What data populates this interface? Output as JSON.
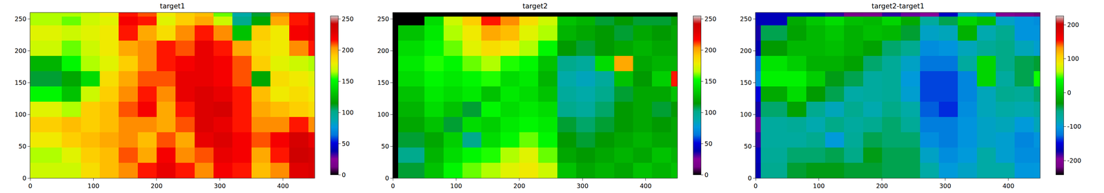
{
  "chart_data": [
    {
      "type": "heatmap",
      "title": "target1",
      "x": [
        0,
        8,
        50,
        80,
        110,
        140,
        170,
        200,
        230,
        260,
        290,
        320,
        350,
        380,
        410,
        440,
        450
      ],
      "y": [
        0,
        24,
        48,
        72,
        96,
        120,
        144,
        168,
        192,
        216,
        240,
        254,
        260
      ],
      "z": [
        [
          170,
          170,
          170,
          185,
          195,
          205,
          215,
          225,
          215,
          205,
          220,
          215,
          195,
          205,
          228,
          232
        ],
        [
          165,
          165,
          175,
          190,
          195,
          210,
          200,
          220,
          205,
          210,
          225,
          220,
          200,
          215,
          240,
          235
        ],
        [
          180,
          180,
          190,
          195,
          200,
          205,
          195,
          210,
          200,
          225,
          230,
          220,
          210,
          220,
          235,
          225
        ],
        [
          190,
          190,
          195,
          190,
          195,
          205,
          205,
          200,
          210,
          230,
          225,
          215,
          205,
          205,
          215,
          205
        ],
        [
          175,
          175,
          165,
          190,
          195,
          210,
          220,
          200,
          215,
          230,
          235,
          215,
          200,
          195,
          190,
          185
        ],
        [
          150,
          150,
          130,
          170,
          190,
          205,
          215,
          205,
          225,
          230,
          225,
          215,
          195,
          180,
          185,
          180
        ],
        [
          110,
          110,
          120,
          140,
          185,
          200,
          210,
          210,
          225,
          225,
          220,
          210,
          120,
          185,
          180,
          175
        ],
        [
          125,
          125,
          150,
          165,
          175,
          190,
          205,
          215,
          220,
          225,
          220,
          210,
          190,
          175,
          170,
          165
        ],
        [
          170,
          170,
          160,
          170,
          180,
          200,
          205,
          215,
          210,
          225,
          215,
          200,
          185,
          180,
          205,
          215
        ],
        [
          175,
          175,
          170,
          175,
          180,
          215,
          200,
          185,
          205,
          215,
          205,
          130,
          190,
          180,
          220,
          225
        ],
        [
          165,
          165,
          160,
          170,
          175,
          220,
          215,
          175,
          190,
          200,
          170,
          100,
          120,
          200,
          215,
          225
        ],
        [
          165,
          165,
          165,
          170,
          180,
          215,
          210,
          180,
          190,
          195,
          160,
          90,
          110,
          205,
          215,
          220
        ]
      ],
      "xlim": [
        0,
        450
      ],
      "ylim": [
        0,
        260
      ],
      "xticks": [
        0,
        100,
        200,
        300,
        400
      ],
      "yticks": [
        0,
        50,
        100,
        150,
        200,
        250
      ],
      "colorbar": {
        "range": [
          0,
          255
        ],
        "ticks": [
          0,
          50,
          100,
          150,
          200,
          250
        ]
      }
    },
    {
      "type": "heatmap",
      "title": "target2",
      "x": [
        0,
        8,
        50,
        80,
        110,
        140,
        170,
        200,
        230,
        260,
        290,
        320,
        350,
        380,
        410,
        440,
        450
      ],
      "y": [
        0,
        24,
        48,
        72,
        96,
        120,
        144,
        168,
        192,
        216,
        240,
        254,
        260
      ],
      "z": [
        [
          0,
          110,
          130,
          150,
          160,
          165,
          175,
          180,
          170,
          130,
          120,
          125,
          120,
          130,
          125,
          130
        ],
        [
          0,
          100,
          125,
          140,
          150,
          155,
          165,
          175,
          160,
          120,
          115,
          120,
          125,
          120,
          130,
          125
        ],
        [
          0,
          110,
          120,
          135,
          100,
          140,
          150,
          160,
          150,
          115,
          110,
          115,
          120,
          125,
          120,
          120
        ],
        [
          0,
          120,
          130,
          110,
          140,
          135,
          145,
          150,
          145,
          110,
          105,
          110,
          115,
          120,
          115,
          120
        ],
        [
          0,
          125,
          140,
          130,
          110,
          150,
          140,
          145,
          140,
          100,
          95,
          105,
          115,
          120,
          110,
          115
        ],
        [
          0,
          130,
          145,
          140,
          145,
          130,
          145,
          140,
          130,
          95,
          90,
          100,
          110,
          120,
          120,
          130
        ],
        [
          0,
          140,
          150,
          145,
          150,
          155,
          140,
          145,
          125,
          90,
          85,
          95,
          130,
          115,
          135,
          215
        ],
        [
          0,
          145,
          155,
          150,
          160,
          165,
          155,
          150,
          130,
          100,
          95,
          140,
          200,
          120,
          125,
          125
        ],
        [
          0,
          140,
          150,
          160,
          175,
          185,
          180,
          165,
          150,
          115,
          110,
          115,
          120,
          125,
          120,
          120
        ],
        [
          0,
          130,
          145,
          165,
          180,
          200,
          195,
          175,
          165,
          125,
          120,
          115,
          110,
          120,
          115,
          120
        ],
        [
          0,
          0,
          140,
          170,
          190,
          215,
          205,
          185,
          170,
          130,
          125,
          110,
          115,
          110,
          110,
          115
        ],
        [
          0,
          0,
          0,
          0,
          0,
          0,
          0,
          0,
          0,
          0,
          0,
          0,
          0,
          0,
          0,
          0
        ]
      ],
      "xlim": [
        0,
        450
      ],
      "ylim": [
        0,
        260
      ],
      "xticks": [
        0,
        100,
        200,
        300,
        400
      ],
      "yticks": [
        0,
        50,
        100,
        150,
        200,
        250
      ],
      "colorbar": {
        "range": [
          0,
          255
        ],
        "ticks": [
          0,
          50,
          100,
          150,
          200,
          250
        ]
      }
    },
    {
      "type": "heatmap",
      "title": "target2-target1",
      "x": [
        0,
        8,
        50,
        80,
        110,
        140,
        170,
        200,
        230,
        260,
        290,
        320,
        350,
        380,
        410,
        440,
        450
      ],
      "y": [
        0,
        24,
        48,
        72,
        96,
        120,
        144,
        168,
        192,
        216,
        240,
        254,
        260
      ],
      "z": [
        [
          -170,
          -60,
          -40,
          -35,
          -35,
          -40,
          -40,
          -45,
          -45,
          -75,
          -100,
          -90,
          -75,
          -75,
          -103,
          -102
        ],
        [
          -165,
          -65,
          -50,
          -50,
          -45,
          -55,
          -35,
          -45,
          -45,
          -90,
          -110,
          -100,
          -75,
          -95,
          -110,
          -110
        ],
        [
          -180,
          -70,
          -70,
          -60,
          -100,
          -65,
          -45,
          -50,
          -50,
          -110,
          -120,
          -105,
          -90,
          -95,
          -115,
          -105
        ],
        [
          -190,
          -70,
          -65,
          -80,
          -55,
          -70,
          -60,
          -50,
          -65,
          -120,
          -120,
          -105,
          -90,
          -85,
          -100,
          -85
        ],
        [
          -175,
          -50,
          -25,
          -60,
          -85,
          -60,
          -80,
          -55,
          -75,
          -130,
          -140,
          -110,
          -85,
          -75,
          -80,
          -70
        ],
        [
          -150,
          -20,
          15,
          -30,
          -45,
          -75,
          -70,
          -65,
          -95,
          -135,
          -135,
          -115,
          -85,
          -60,
          -65,
          -50
        ],
        [
          -110,
          30,
          30,
          5,
          -35,
          -45,
          -70,
          -65,
          -100,
          -135,
          -135,
          -115,
          10,
          -70,
          -45,
          40
        ],
        [
          -125,
          20,
          5,
          -15,
          -15,
          -25,
          -50,
          -65,
          -90,
          -125,
          -125,
          -70,
          10,
          -55,
          -45,
          -40
        ],
        [
          -170,
          -30,
          -10,
          -10,
          -5,
          -15,
          -25,
          -50,
          -60,
          -110,
          -105,
          -85,
          -65,
          -55,
          -85,
          -95
        ],
        [
          -175,
          -45,
          -25,
          -10,
          0,
          -15,
          -5,
          -10,
          -40,
          -90,
          -85,
          -15,
          -80,
          -60,
          -105,
          -105
        ],
        [
          -165,
          -165,
          -20,
          0,
          15,
          -5,
          -10,
          10,
          -20,
          -70,
          -45,
          10,
          -5,
          -90,
          -105,
          -110
        ],
        [
          -165,
          -165,
          -165,
          -170,
          -180,
          -215,
          -210,
          -180,
          -190,
          -195,
          -160,
          -90,
          -110,
          -205,
          -215,
          -220
        ]
      ],
      "xlim": [
        0,
        450
      ],
      "ylim": [
        0,
        260
      ],
      "xticks": [
        0,
        100,
        200,
        300,
        400
      ],
      "yticks": [
        0,
        50,
        100,
        150,
        200,
        250
      ],
      "colorbar": {
        "range": [
          -242,
          226
        ],
        "ticks": [
          -200,
          -100,
          0,
          100,
          200
        ]
      }
    }
  ]
}
